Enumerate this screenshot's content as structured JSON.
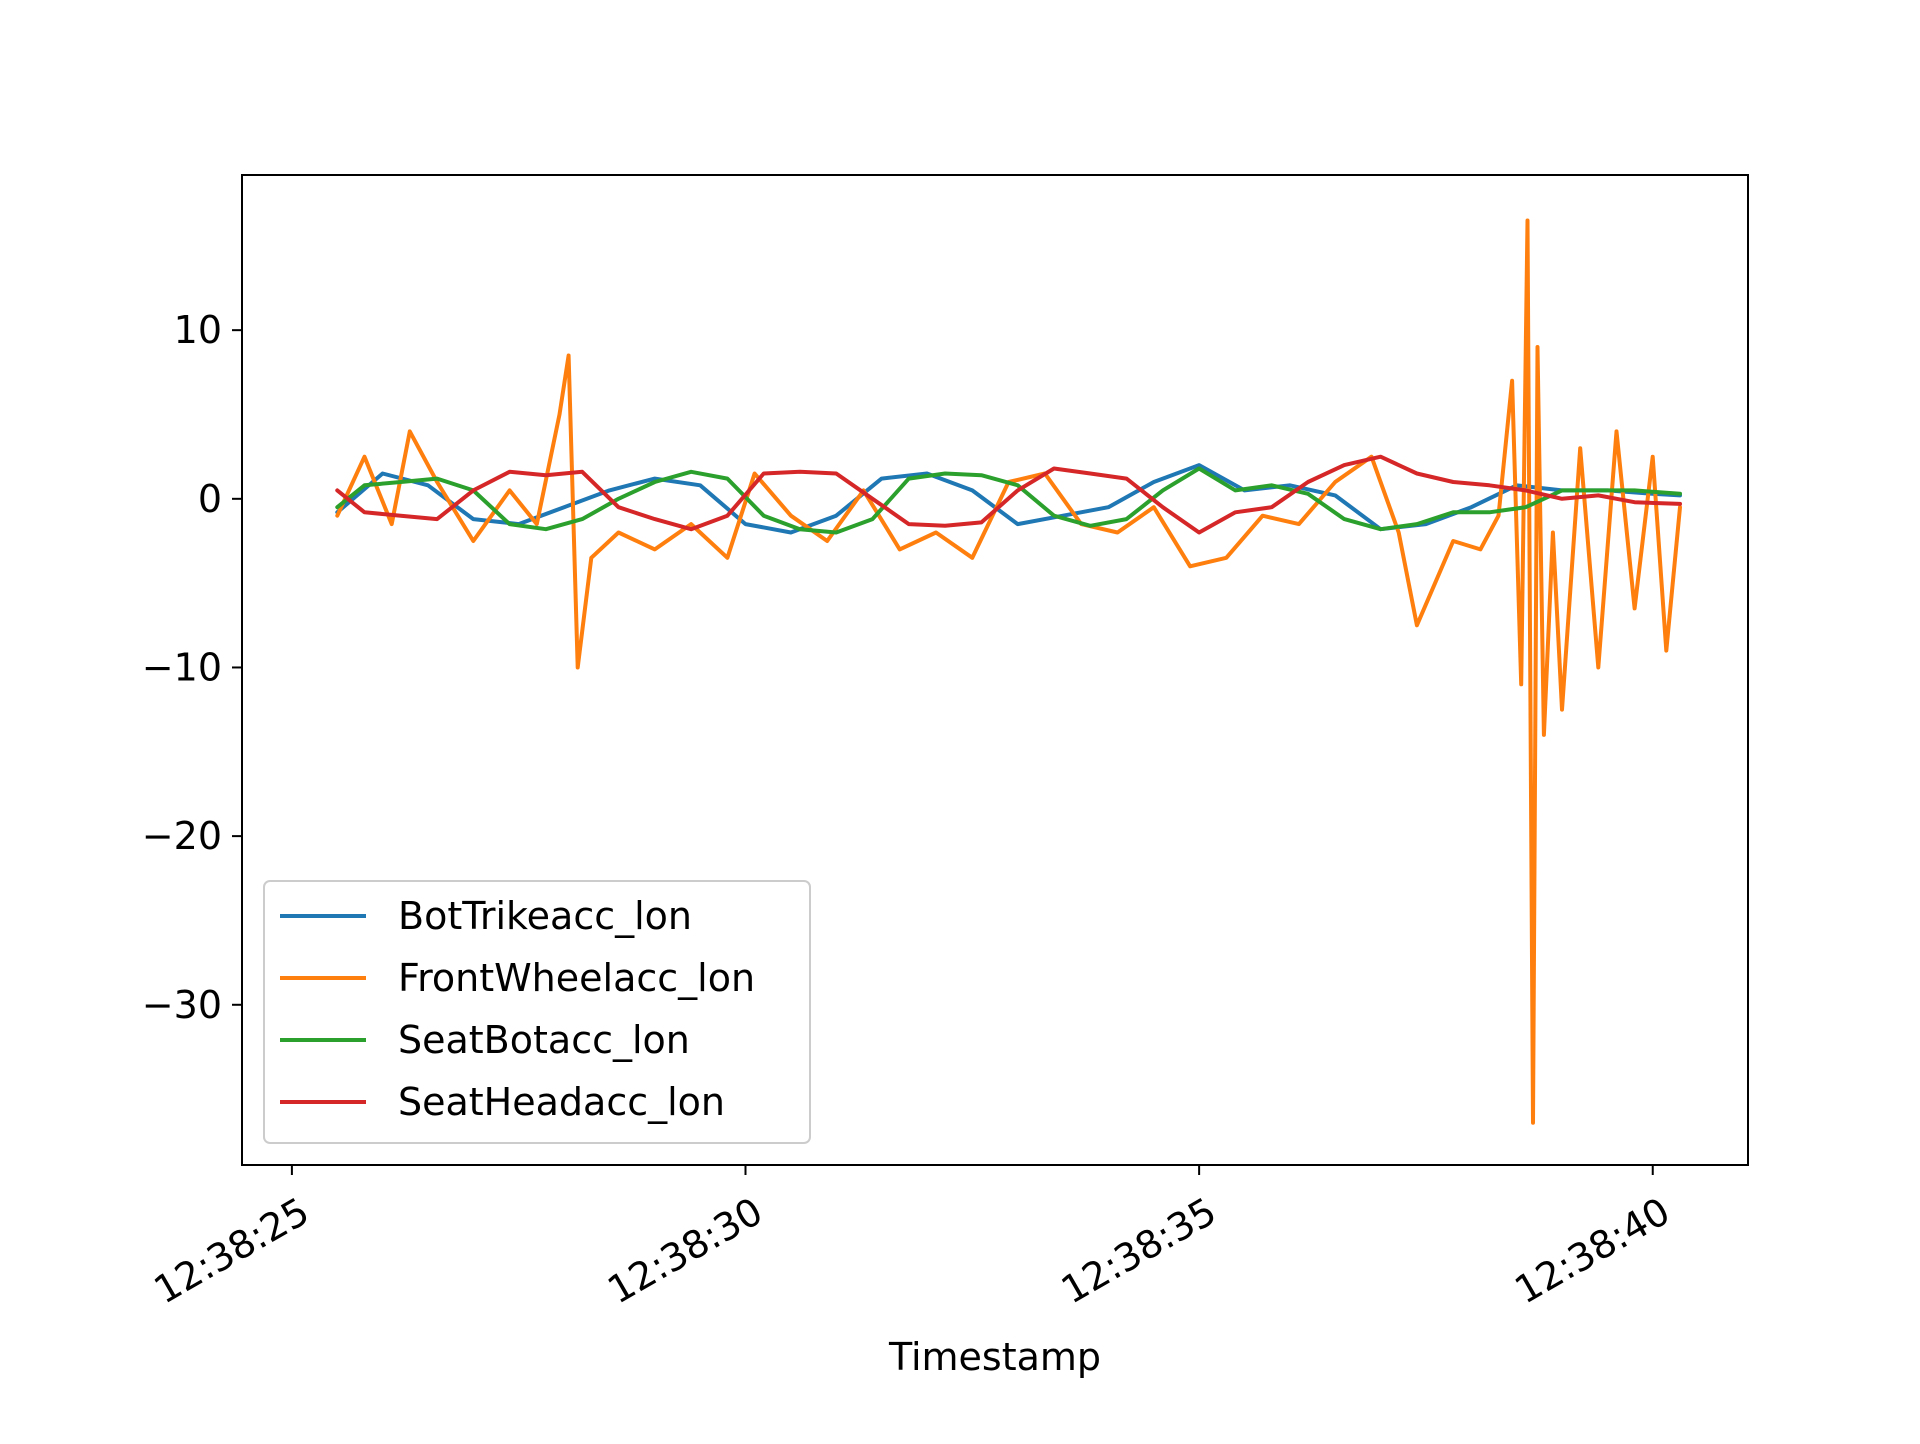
{
  "chart_data": {
    "type": "line",
    "title": "",
    "xlabel": "Timestamp",
    "ylabel": "",
    "x_unit": "time",
    "xlim": [
      "12:38:24.45",
      "12:38:41.05"
    ],
    "ylim": [
      -39.5,
      19.2
    ],
    "x_ticks": [
      "12:38:25",
      "12:38:30",
      "12:38:35",
      "12:38:40"
    ],
    "y_ticks": [
      10,
      0,
      -10,
      -20,
      -30
    ],
    "y_tick_labels": [
      "10",
      "0",
      "−10",
      "−20",
      "−30"
    ],
    "grid": false,
    "legend_position": "lower-left",
    "series": [
      {
        "name": "BotTrikeacc_lon",
        "color": "#1f77b4",
        "x": [
          "12:38:25.5",
          "12:38:26.0",
          "12:38:26.5",
          "12:38:27.0",
          "12:38:27.5",
          "12:38:28.0",
          "12:38:28.5",
          "12:38:29.0",
          "12:38:29.5",
          "12:38:30.0",
          "12:38:30.5",
          "12:38:31.0",
          "12:38:31.5",
          "12:38:32.0",
          "12:38:32.5",
          "12:38:33.0",
          "12:38:33.5",
          "12:38:34.0",
          "12:38:34.5",
          "12:38:35.0",
          "12:38:35.5",
          "12:38:36.0",
          "12:38:36.5",
          "12:38:37.0",
          "12:38:37.5",
          "12:38:38.0",
          "12:38:38.5",
          "12:38:39.0",
          "12:38:39.5",
          "12:38:40.0",
          "12:38:40.3"
        ],
        "values": [
          -0.8,
          1.5,
          0.8,
          -1.2,
          -1.5,
          -0.5,
          0.5,
          1.2,
          0.8,
          -1.5,
          -2.0,
          -1.0,
          1.2,
          1.5,
          0.5,
          -1.5,
          -1.0,
          -0.5,
          1.0,
          2.0,
          0.5,
          0.8,
          0.2,
          -1.8,
          -1.5,
          -0.5,
          0.8,
          0.5,
          0.5,
          0.3,
          0.2
        ]
      },
      {
        "name": "FrontWheelacc_lon",
        "color": "#ff7f0e",
        "x": [
          "12:38:25.5",
          "12:38:25.8",
          "12:38:26.1",
          "12:38:26.3",
          "12:38:26.6",
          "12:38:27.0",
          "12:38:27.4",
          "12:38:27.7",
          "12:38:27.95",
          "12:38:28.05",
          "12:38:28.15",
          "12:38:28.3",
          "12:38:28.6",
          "12:38:29.0",
          "12:38:29.4",
          "12:38:29.8",
          "12:38:30.1",
          "12:38:30.5",
          "12:38:30.9",
          "12:38:31.3",
          "12:38:31.7",
          "12:38:32.1",
          "12:38:32.5",
          "12:38:32.9",
          "12:38:33.3",
          "12:38:33.7",
          "12:38:34.1",
          "12:38:34.5",
          "12:38:34.9",
          "12:38:35.3",
          "12:38:35.7",
          "12:38:36.1",
          "12:38:36.5",
          "12:38:36.9",
          "12:38:37.2",
          "12:38:37.4",
          "12:38:37.8",
          "12:38:38.1",
          "12:38:38.3",
          "12:38:38.45",
          "12:38:38.55",
          "12:38:38.62",
          "12:38:38.68",
          "12:38:38.73",
          "12:38:38.8",
          "12:38:38.9",
          "12:38:39.0",
          "12:38:39.2",
          "12:38:39.4",
          "12:38:39.6",
          "12:38:39.8",
          "12:38:40.0",
          "12:38:40.15",
          "12:38:40.3"
        ],
        "values": [
          -1.0,
          2.5,
          -1.5,
          4.0,
          1.0,
          -2.5,
          0.5,
          -1.5,
          5.0,
          8.5,
          -10.0,
          -3.5,
          -2.0,
          -3.0,
          -1.5,
          -3.5,
          1.5,
          -1.0,
          -2.5,
          0.5,
          -3.0,
          -2.0,
          -3.5,
          1.0,
          1.5,
          -1.5,
          -2.0,
          -0.5,
          -4.0,
          -3.5,
          -1.0,
          -1.5,
          1.0,
          2.5,
          -2.0,
          -7.5,
          -2.5,
          -3.0,
          -1.0,
          7.0,
          -11.0,
          16.5,
          -37.0,
          9.0,
          -14.0,
          -2.0,
          -12.5,
          3.0,
          -10.0,
          4.0,
          -6.5,
          2.5,
          -9.0,
          -0.5
        ]
      },
      {
        "name": "SeatBotacc_lon",
        "color": "#2ca02c",
        "x": [
          "12:38:25.5",
          "12:38:25.8",
          "12:38:26.2",
          "12:38:26.6",
          "12:38:27.0",
          "12:38:27.4",
          "12:38:27.8",
          "12:38:28.2",
          "12:38:28.6",
          "12:38:29.0",
          "12:38:29.4",
          "12:38:29.8",
          "12:38:30.2",
          "12:38:30.6",
          "12:38:31.0",
          "12:38:31.4",
          "12:38:31.8",
          "12:38:32.2",
          "12:38:32.6",
          "12:38:33.0",
          "12:38:33.4",
          "12:38:33.8",
          "12:38:34.2",
          "12:38:34.6",
          "12:38:35.0",
          "12:38:35.4",
          "12:38:35.8",
          "12:38:36.2",
          "12:38:36.6",
          "12:38:37.0",
          "12:38:37.4",
          "12:38:37.8",
          "12:38:38.2",
          "12:38:38.6",
          "12:38:39.0",
          "12:38:39.4",
          "12:38:39.8",
          "12:38:40.3"
        ],
        "values": [
          -0.5,
          0.8,
          1.0,
          1.2,
          0.5,
          -1.5,
          -1.8,
          -1.2,
          0.0,
          1.0,
          1.6,
          1.2,
          -1.0,
          -1.8,
          -2.0,
          -1.2,
          1.2,
          1.5,
          1.4,
          0.8,
          -1.0,
          -1.6,
          -1.2,
          0.5,
          1.8,
          0.5,
          0.8,
          0.3,
          -1.2,
          -1.8,
          -1.5,
          -0.8,
          -0.8,
          -0.5,
          0.5,
          0.5,
          0.5,
          0.3
        ]
      },
      {
        "name": "SeatHeadacc_lon",
        "color": "#d62728",
        "x": [
          "12:38:25.5",
          "12:38:25.8",
          "12:38:26.2",
          "12:38:26.6",
          "12:38:27.0",
          "12:38:27.4",
          "12:38:27.8",
          "12:38:28.2",
          "12:38:28.6",
          "12:38:29.0",
          "12:38:29.4",
          "12:38:29.8",
          "12:38:30.2",
          "12:38:30.6",
          "12:38:31.0",
          "12:38:31.4",
          "12:38:31.8",
          "12:38:32.2",
          "12:38:32.6",
          "12:38:33.0",
          "12:38:33.4",
          "12:38:33.8",
          "12:38:34.2",
          "12:38:34.6",
          "12:38:35.0",
          "12:38:35.4",
          "12:38:35.8",
          "12:38:36.2",
          "12:38:36.6",
          "12:38:37.0",
          "12:38:37.4",
          "12:38:37.8",
          "12:38:38.2",
          "12:38:38.6",
          "12:38:39.0",
          "12:38:39.4",
          "12:38:39.8",
          "12:38:40.3"
        ],
        "values": [
          0.5,
          -0.8,
          -1.0,
          -1.2,
          0.5,
          1.6,
          1.4,
          1.6,
          -0.5,
          -1.2,
          -1.8,
          -1.0,
          1.5,
          1.6,
          1.5,
          0.0,
          -1.5,
          -1.6,
          -1.4,
          0.5,
          1.8,
          1.5,
          1.2,
          -0.5,
          -2.0,
          -0.8,
          -0.5,
          1.0,
          2.0,
          2.5,
          1.5,
          1.0,
          0.8,
          0.5,
          0.0,
          0.2,
          -0.2,
          -0.3
        ]
      }
    ]
  }
}
